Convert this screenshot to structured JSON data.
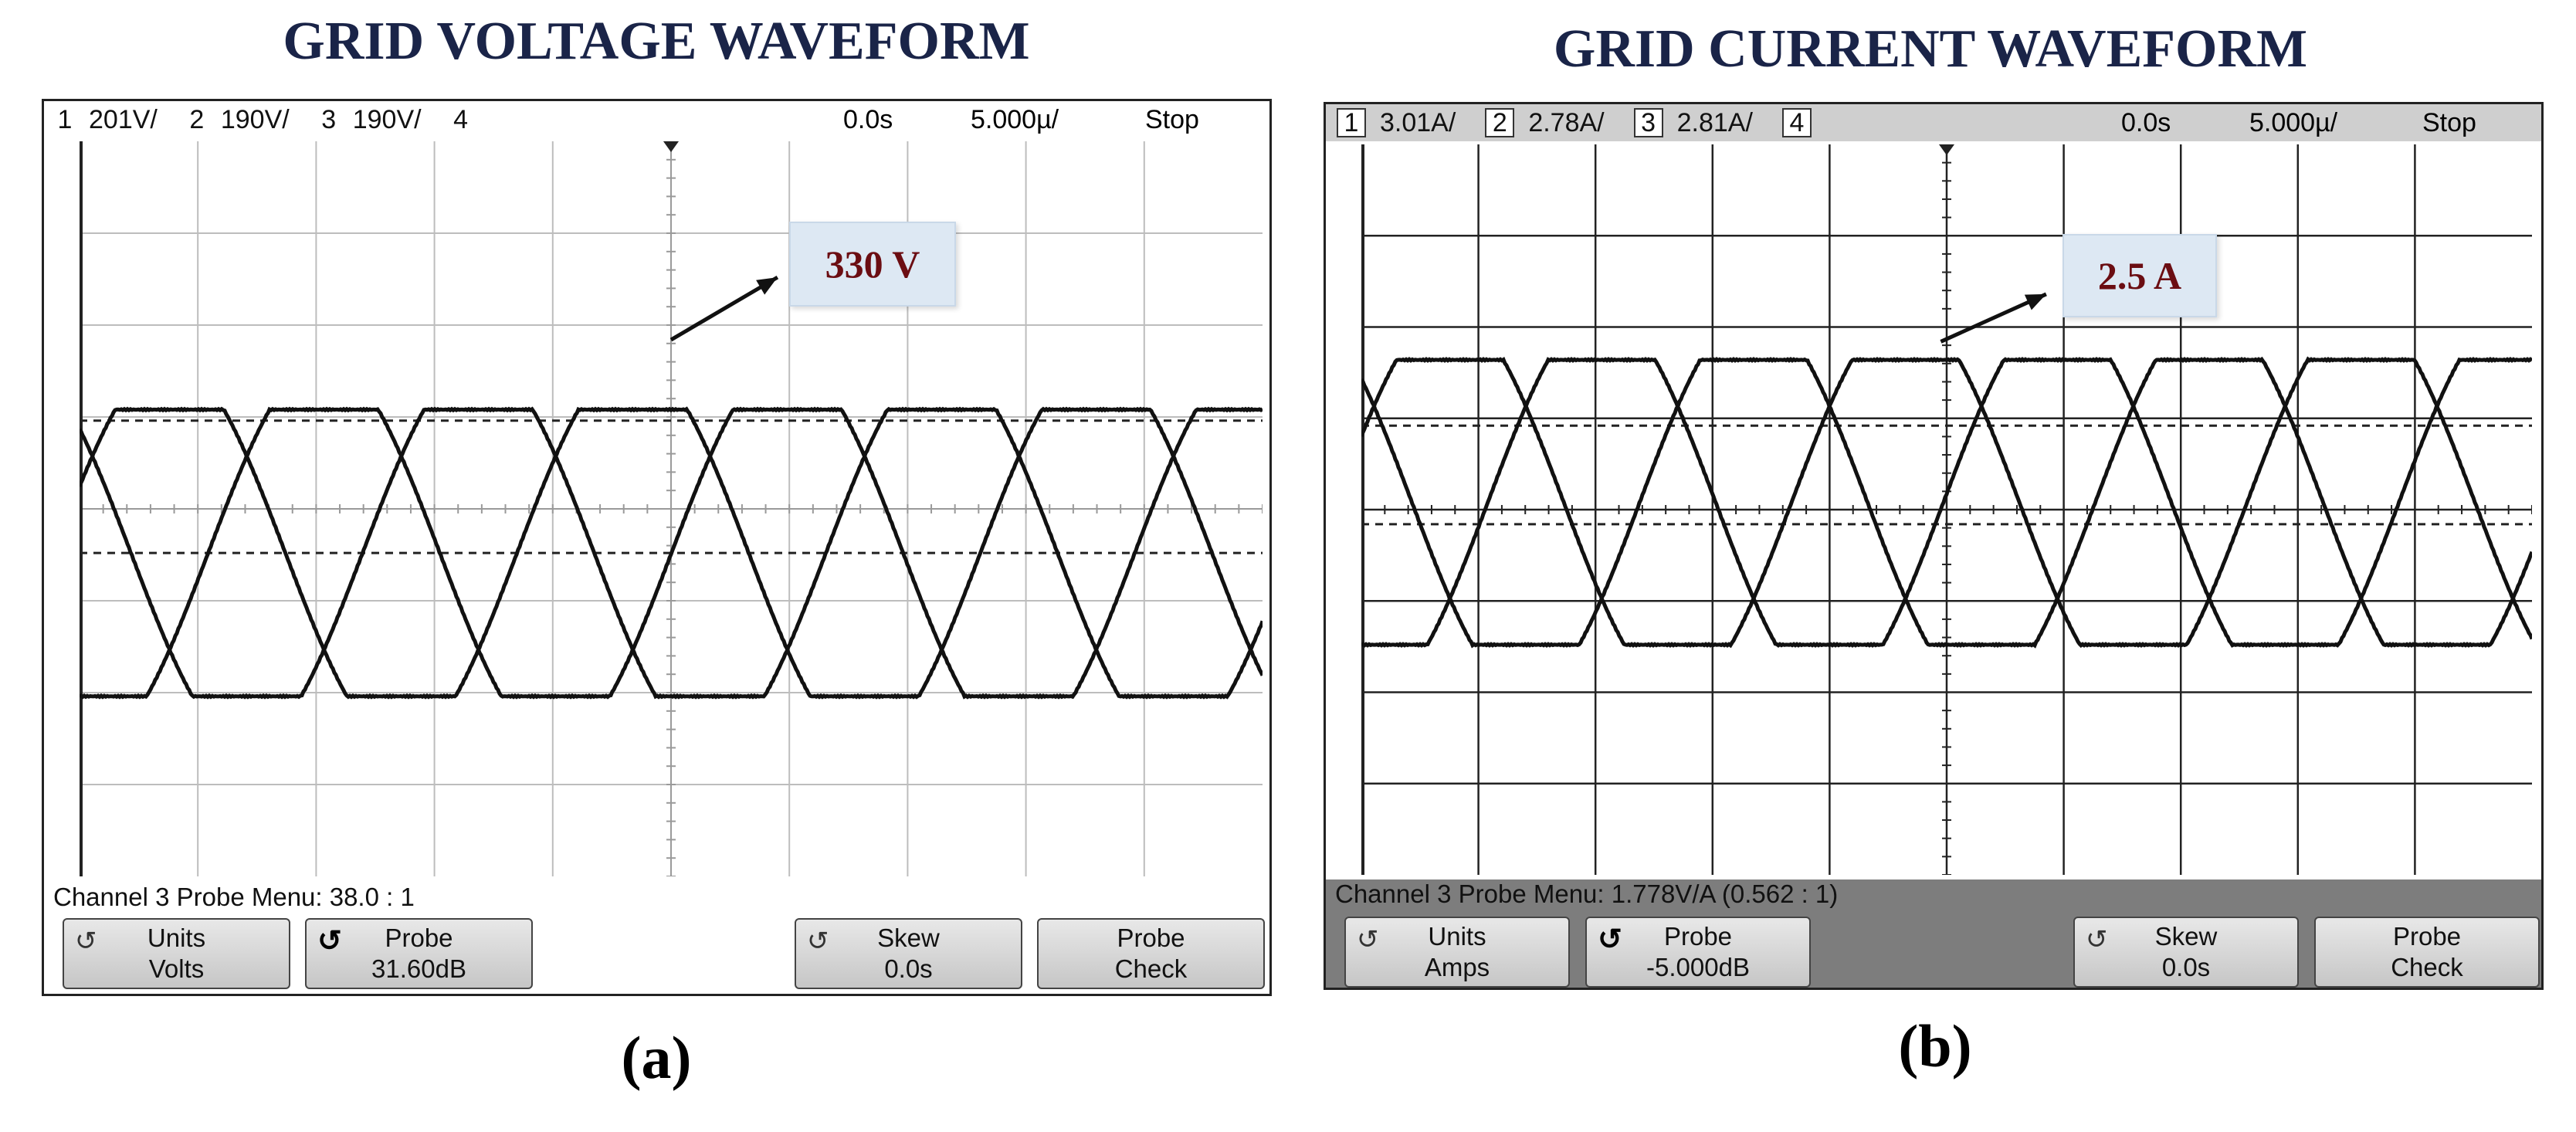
{
  "panels": [
    {
      "title": "GRID VOLTAGE WAVEFORM",
      "caption": "(a)",
      "channels": [
        {
          "num": "1",
          "scale": "201V/"
        },
        {
          "num": "2",
          "scale": "190V/"
        },
        {
          "num": "3",
          "scale": "190V/"
        },
        {
          "num": "4",
          "scale": ""
        }
      ],
      "time_offset": "0.0s",
      "time_scale": "5.000µ/",
      "run_state": "Stop",
      "menu_label": "Channel 3 Probe Menu: 38.0 : 1",
      "softkeys": {
        "units": {
          "label": "Units",
          "value": "Volts"
        },
        "probe": {
          "label": "Probe",
          "value": "31.60dB"
        },
        "skew": {
          "label": "Skew",
          "value": "0.0s"
        },
        "probe_check": {
          "label": "Probe",
          "value": "Check"
        }
      },
      "callout": "330 V"
    },
    {
      "title": "GRID CURRENT WAVEFORM",
      "caption": "(b)",
      "channels": [
        {
          "num": "1",
          "scale": "3.01A/"
        },
        {
          "num": "2",
          "scale": "2.78A/"
        },
        {
          "num": "3",
          "scale": "2.81A/"
        },
        {
          "num": "4",
          "scale": ""
        }
      ],
      "time_offset": "0.0s",
      "time_scale": "5.000µ/",
      "run_state": "Stop",
      "menu_label": "Channel 3 Probe Menu: 1.778V/A (0.562 : 1)",
      "softkeys": {
        "units": {
          "label": "Units",
          "value": "Amps"
        },
        "probe": {
          "label": "Probe",
          "value": "-5.000dB"
        },
        "skew": {
          "label": "Skew",
          "value": "0.0s"
        },
        "probe_check": {
          "label": "Probe",
          "value": "Check"
        }
      },
      "callout": "2.5 A"
    }
  ],
  "icons": {
    "rotate": "↺",
    "ground_marker": "ground-marker-icon",
    "trigger_marker": "trigger-marker-icon"
  }
}
